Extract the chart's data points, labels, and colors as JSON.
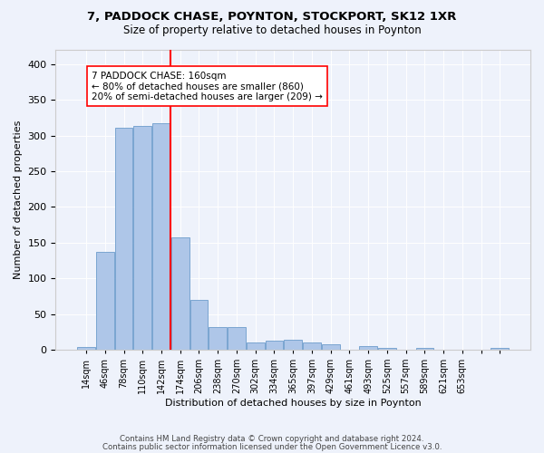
{
  "title1": "7, PADDOCK CHASE, POYNTON, STOCKPORT, SK12 1XR",
  "title2": "Size of property relative to detached houses in Poynton",
  "xlabel": "Distribution of detached houses by size in Poynton",
  "ylabel": "Number of detached properties",
  "footer1": "Contains HM Land Registry data © Crown copyright and database right 2024.",
  "footer2": "Contains public sector information licensed under the Open Government Licence v3.0.",
  "annotation_title": "7 PADDOCK CHASE: 160sqm",
  "annotation_line1": "← 80% of detached houses are smaller (860)",
  "annotation_line2": "20% of semi-detached houses are larger (209) →",
  "bar_values": [
    4,
    137,
    311,
    313,
    317,
    157,
    70,
    32,
    32,
    10,
    13,
    14,
    10,
    7,
    0,
    5,
    3,
    0,
    3,
    0,
    0,
    0,
    3
  ],
  "categories": [
    "14sqm",
    "46sqm",
    "78sqm",
    "110sqm",
    "142sqm",
    "174sqm",
    "206sqm",
    "238sqm",
    "270sqm",
    "302sqm",
    "334sqm",
    "365sqm",
    "397sqm",
    "429sqm",
    "461sqm",
    "493sqm",
    "525sqm",
    "557sqm",
    "589sqm",
    "621sqm",
    "653sqm",
    "",
    ""
  ],
  "bar_color": "#aec6e8",
  "bar_edge_color": "#5a8fc4",
  "red_line_x": 4.5,
  "ylim": [
    0,
    420
  ],
  "yticks": [
    0,
    50,
    100,
    150,
    200,
    250,
    300,
    350,
    400
  ],
  "bg_color": "#eef2fb",
  "plot_bg_color": "#eef2fb"
}
